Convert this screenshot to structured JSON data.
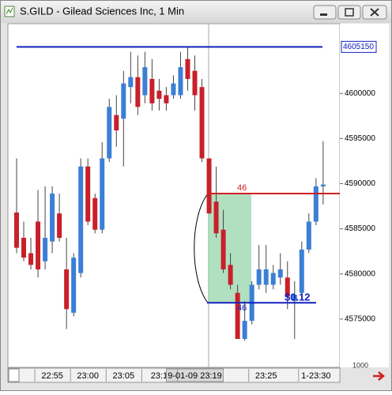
{
  "chart_data": {
    "type": "candlestick",
    "title": "S.GILD - Gilead Sciences Inc, 1 Min",
    "categories": [
      null,
      null,
      null,
      null,
      null,
      "22:55",
      null,
      null,
      null,
      null,
      "23:00",
      null,
      null,
      null,
      null,
      "23:05",
      null,
      null,
      null,
      null,
      "23:1",
      null,
      null,
      null,
      null,
      "9-01-09  23:19",
      null,
      null,
      null,
      null,
      null,
      null,
      null,
      null,
      null,
      "23:25",
      null,
      null,
      null,
      null,
      null,
      null,
      "1-23:30",
      null
    ],
    "open": [
      4586800,
      4584000,
      4582300,
      4585800,
      4581400,
      4583600,
      4586700,
      4580500,
      4575700,
      4580100,
      4591900,
      4588400,
      4584900,
      4592800,
      4597600,
      4597200,
      4600700,
      4601800,
      4599800,
      4601600,
      4600300,
      4599800,
      4599800,
      4599800,
      4603800,
      4602500,
      4600700,
      4592800,
      4588000,
      4584900,
      4581000,
      4577900,
      4572800,
      4574800,
      4578800,
      4578800,
      4578800,
      4579600,
      4579600,
      4577000,
      4577900,
      4582700,
      4585800,
      4589700
    ],
    "high": [
      4592800,
      4585800,
      4584000,
      4589300,
      4589700,
      4589700,
      4588900,
      4584000,
      4582300,
      4592800,
      4592800,
      4588900,
      4594600,
      4599400,
      4599800,
      4602500,
      4604600,
      4604200,
      4604600,
      4603800,
      4601600,
      4600700,
      4602000,
      4604600,
      4605100,
      4604200,
      4601600,
      4592800,
      4591900,
      4587100,
      4582300,
      4578800,
      4577000,
      4579200,
      4583200,
      4583200,
      4581000,
      4582300,
      4581400,
      4579200,
      4583600,
      4586700,
      4590600,
      4594700
    ],
    "low": [
      4582300,
      4581400,
      4580500,
      4579600,
      4580500,
      4582300,
      4583600,
      4573900,
      4575300,
      4579600,
      4585400,
      4584500,
      4584500,
      4592400,
      4594100,
      4591900,
      4598900,
      4597600,
      4598900,
      4598100,
      4598100,
      4598100,
      4599400,
      4599400,
      4600300,
      4598100,
      4592400,
      4586700,
      4584000,
      4580100,
      4578300,
      4572800,
      4572600,
      4574400,
      4578300,
      4577900,
      4578300,
      4578800,
      4576100,
      4572800,
      4577500,
      4582300,
      4585400,
      4587700
    ],
    "close": [
      4582900,
      4581800,
      4581000,
      4580500,
      4584000,
      4588900,
      4584000,
      4576100,
      4581800,
      4591900,
      4585800,
      4584900,
      4592800,
      4598500,
      4595900,
      4601100,
      4601800,
      4598500,
      4602900,
      4598900,
      4599400,
      4598900,
      4601100,
      4602900,
      4601600,
      4599800,
      4592800,
      4586700,
      4584500,
      4580500,
      4578800,
      4572800,
      4574800,
      4578800,
      4580500,
      4580500,
      4580100,
      4580500,
      4577500,
      4577700,
      4582700,
      4585800,
      4589700,
      4589900
    ],
    "up_color": "#3b7fd6",
    "down_color": "#c8202a",
    "ylim": [
      4569650,
      4607720
    ],
    "yticks": [
      4575000,
      4580000,
      4585000,
      4590000,
      4595000,
      4600000
    ],
    "price_line": {
      "value": 4605150,
      "label": "4605150"
    },
    "measure": {
      "high": 4588900,
      "low": 4576800,
      "high_label": "46",
      "low_label": "46",
      "change_label": "$0.12"
    },
    "axis_note": "1000"
  }
}
